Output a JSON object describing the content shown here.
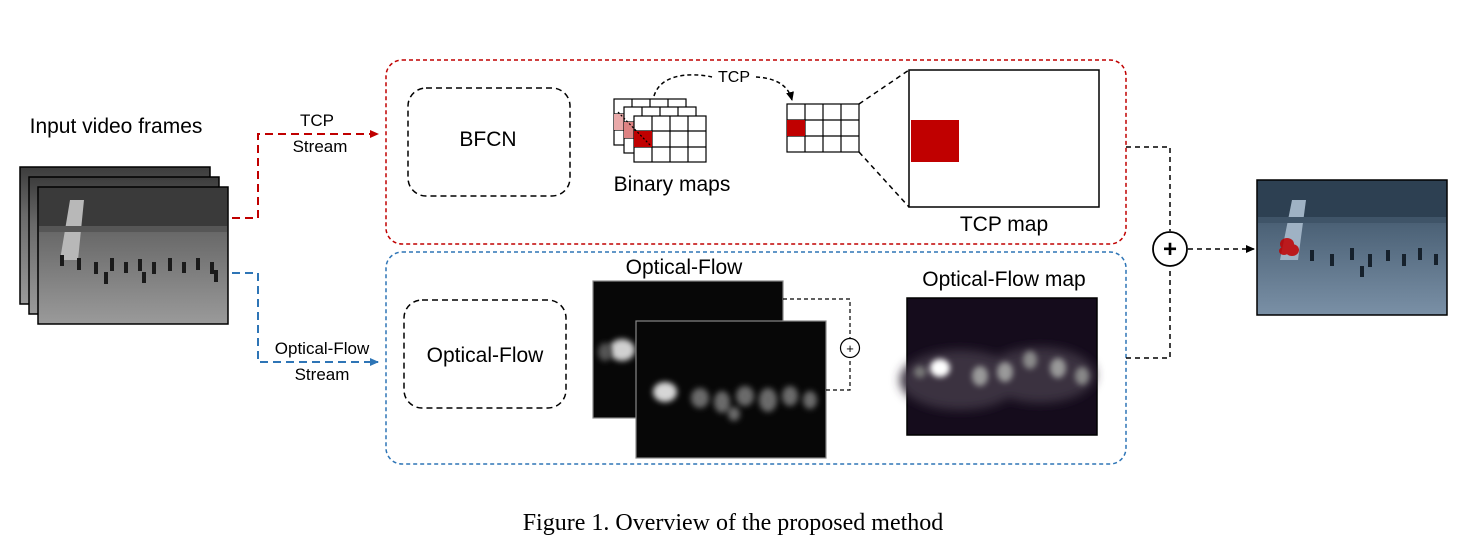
{
  "input": {
    "label": "Input video frames"
  },
  "tcp_stream": {
    "label_line1": "TCP",
    "label_line2": "Stream",
    "bfcn_label": "BFCN",
    "binary_maps_label": "Binary maps",
    "arrow_label": "TCP",
    "tcp_map_label": "TCP map",
    "color": "#c00000"
  },
  "flow_stream": {
    "label_line1": "Optical-Flow",
    "label_line2": "Stream",
    "module_label": "Optical-Flow",
    "frames_label": "Optical-Flow",
    "map_label": "Optical-Flow map",
    "color": "#2e75b6"
  },
  "fusion": {
    "symbol": "+",
    "small_symbol": "+"
  },
  "caption": "Figure 1. Overview of the proposed method"
}
